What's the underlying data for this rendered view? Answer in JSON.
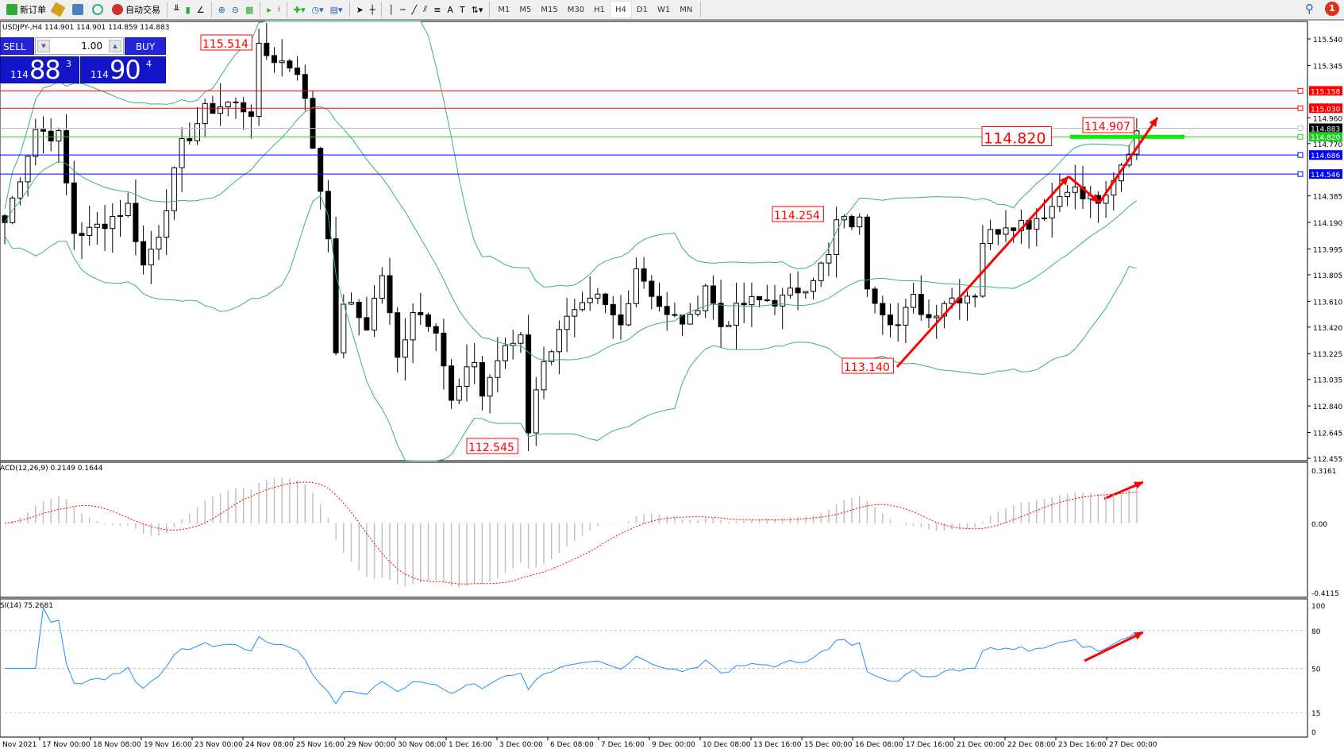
{
  "toolbar": {
    "new_order": "新订单",
    "auto_trading": "自动交易",
    "timeframes": [
      "M1",
      "M5",
      "M15",
      "M30",
      "H1",
      "H4",
      "D1",
      "W1",
      "MN"
    ],
    "active_timeframe": "H4",
    "notification_count": "1"
  },
  "symbol_info": "USDJPY-,H4  114.901 114.901 114.859 114.883",
  "trade_panel": {
    "sell_label": "SELL",
    "buy_label": "BUY",
    "lot": "1.00",
    "sell_small": "114",
    "sell_big": "88",
    "sell_pip": "3",
    "buy_small": "114",
    "buy_big": "90",
    "buy_pip": "4"
  },
  "price_axis": {
    "min": 112.455,
    "max": 115.54,
    "ticks": [
      "115.540",
      "115.345",
      "114.960",
      "114.770",
      "114.385",
      "114.190",
      "113.995",
      "113.805",
      "113.610",
      "113.420",
      "113.225",
      "113.035",
      "112.840",
      "112.645",
      "112.455"
    ]
  },
  "horizontal_lines": [
    {
      "price": 115.158,
      "label": "115.158",
      "color": "#ff0000"
    },
    {
      "price": 115.03,
      "label": "115.030",
      "color": "#ff0000"
    },
    {
      "price": 114.883,
      "label": "114.883",
      "color": "#000000",
      "line": "#c0c0c0"
    },
    {
      "price": 114.82,
      "label": "114.820",
      "color": "#22cc22"
    },
    {
      "price": 114.686,
      "label": "114.686",
      "color": "#0000ff"
    },
    {
      "price": 114.546,
      "label": "114.546",
      "color": "#0000ff"
    }
  ],
  "price_labels": [
    "115.514",
    "112.545",
    "114.254",
    "113.140",
    "114.907",
    "114.820"
  ],
  "price_path": [
    [
      0,
      114.19
    ],
    [
      4,
      114.88
    ],
    [
      7,
      114.82
    ],
    [
      9,
      114.12
    ],
    [
      11,
      114.12
    ],
    [
      16,
      114.31
    ],
    [
      18,
      113.87
    ],
    [
      20,
      114.12
    ],
    [
      23,
      114.75
    ],
    [
      26,
      115.01
    ],
    [
      29,
      115.07
    ],
    [
      32,
      115.01
    ],
    [
      33,
      115.45
    ],
    [
      38,
      115.32
    ],
    [
      39,
      115.07
    ],
    [
      42,
      114.12
    ],
    [
      43,
      113.18
    ],
    [
      44,
      113.62
    ],
    [
      47,
      113.43
    ],
    [
      49,
      113.81
    ],
    [
      51,
      113.18
    ],
    [
      53,
      113.56
    ],
    [
      56,
      113.43
    ],
    [
      58,
      112.86
    ],
    [
      61,
      113.18
    ],
    [
      62,
      112.92
    ],
    [
      64,
      113.18
    ],
    [
      67,
      113.37
    ],
    [
      68,
      112.67
    ],
    [
      69,
      112.99
    ],
    [
      72,
      113.43
    ],
    [
      77,
      113.62
    ],
    [
      80,
      113.43
    ],
    [
      82,
      113.87
    ],
    [
      86,
      113.49
    ],
    [
      89,
      113.46
    ],
    [
      91,
      113.74
    ],
    [
      93,
      113.43
    ],
    [
      96,
      113.59
    ],
    [
      99,
      113.62
    ],
    [
      101,
      113.62
    ],
    [
      104,
      113.74
    ],
    [
      107,
      113.93
    ],
    [
      108,
      114.19
    ],
    [
      111,
      114.19
    ],
    [
      112,
      113.74
    ],
    [
      114,
      113.56
    ],
    [
      116,
      113.43
    ],
    [
      118,
      113.62
    ],
    [
      120,
      113.49
    ],
    [
      122,
      113.62
    ],
    [
      126,
      113.68
    ],
    [
      127,
      114.06
    ],
    [
      130,
      114.19
    ],
    [
      133,
      114.19
    ],
    [
      136,
      114.31
    ],
    [
      138,
      114.47
    ],
    [
      140,
      114.37
    ],
    [
      143,
      114.34
    ],
    [
      144,
      114.47
    ],
    [
      146,
      114.72
    ],
    [
      147,
      114.88
    ]
  ],
  "macd": {
    "label": "ACD(12,26,9) 0.2149 0.1644",
    "max": 0.3161,
    "min": -0.4115,
    "ticks": [
      "0.3161",
      "0.00",
      "-0.4115"
    ]
  },
  "rsi": {
    "label": "SI(14) 75.2681",
    "ticks": [
      "100",
      "80",
      "50",
      "15",
      "0"
    ],
    "levels": [
      80,
      50,
      15
    ]
  },
  "time_axis": [
    "Nov 2021",
    "17 Nov 00:00",
    "18 Nov 08:00",
    "19 Nov 16:00",
    "23 Nov 00:00",
    "24 Nov 08:00",
    "25 Nov 16:00",
    "29 Nov 00:00",
    "30 Nov 08:00",
    "1 Dec 16:00",
    "3 Dec 00:00",
    "6 Dec 08:00",
    "7 Dec 16:00",
    "9 Dec 00:00",
    "10 Dec 08:00",
    "13 Dec 16:00",
    "15 Dec 00:00",
    "16 Dec 08:00",
    "17 Dec 16:00",
    "21 Dec 00:00",
    "22 Dec 08:00",
    "23 Dec 16:00",
    "27 Dec 00:00"
  ],
  "colors": {
    "bollinger": "#3cb371",
    "macd_hist": "#c0c0c0",
    "macd_signal": "#ff0000",
    "rsi": "#1e90ff",
    "annotation": "#ff0000",
    "support_bar": "#00ee00"
  }
}
